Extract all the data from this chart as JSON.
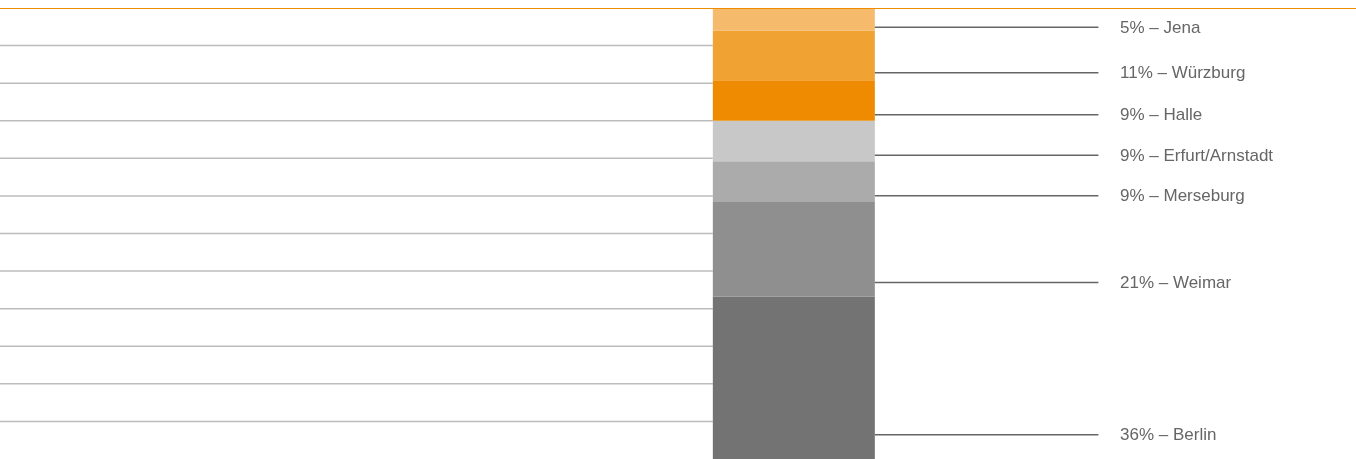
{
  "chart_data": {
    "type": "bar",
    "stacked": true,
    "categories": [
      null
    ],
    "series": [
      {
        "color": "#737373",
        "values": [
          36
        ],
        "value_labels": [
          "36% – Berlin"
        ]
      },
      {
        "color": "#8f8f8f",
        "values": [
          21
        ],
        "value_labels": [
          "21% – Weimar"
        ]
      },
      {
        "color": "#ababab",
        "values": [
          9
        ],
        "value_labels": [
          "9% – Merseburg"
        ]
      },
      {
        "color": "#c8c8c8",
        "values": [
          9
        ],
        "value_labels": [
          "9% – Erfurt/Arnstadt"
        ]
      },
      {
        "color": "#ee8b00",
        "values": [
          9
        ],
        "value_labels": [
          "9% – Halle"
        ]
      },
      {
        "color": "#f0a232",
        "values": [
          11
        ],
        "value_labels": [
          "11% – Würzburg"
        ]
      },
      {
        "color": "#f5ba6c",
        "values": [
          5
        ],
        "value_labels": [
          "5% – Jena"
        ]
      }
    ],
    "ylim": [
      0,
      100
    ],
    "grid": "y",
    "ref_lines": [
      {
        "axis": "y",
        "value": 100,
        "color": "#ee8b00"
      }
    ]
  }
}
